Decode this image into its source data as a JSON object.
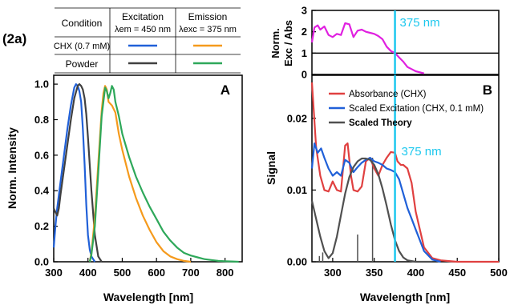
{
  "figure_label": "(2a)",
  "legend_table": {
    "header": [
      "Condition",
      "Excitation",
      "Emission"
    ],
    "excitation_sub": "λem = 450 nm",
    "emission_sub": "λexc = 375 nm",
    "rows": [
      {
        "condition": "CHX (0.7 mM)",
        "exc_color": "#2060d8",
        "emi_color": "#f59a1c"
      },
      {
        "condition": "Powder",
        "exc_color": "#404040",
        "emi_color": "#2ea85a"
      }
    ]
  },
  "chart_data": [
    {
      "type": "line",
      "panel": "A",
      "xlabel": "Wavelength [nm]",
      "ylabel": "Norm. Intensity",
      "xlim": [
        300,
        850
      ],
      "ylim": [
        0,
        1.05
      ],
      "xticks": [
        300,
        400,
        500,
        600,
        700,
        800
      ],
      "yticks": [
        "0.0",
        "0.2",
        "0.4",
        "0.6",
        "0.8",
        "1.0"
      ],
      "series": [
        {
          "color": "#2060d8",
          "x": [
            300,
            305,
            310,
            320,
            330,
            340,
            350,
            360,
            365,
            370,
            375,
            380,
            385,
            390,
            395,
            400,
            405,
            410,
            420
          ],
          "y": [
            0.08,
            0.2,
            0.3,
            0.45,
            0.6,
            0.75,
            0.88,
            0.98,
            1.0,
            0.99,
            0.96,
            0.9,
            0.75,
            0.55,
            0.32,
            0.15,
            0.07,
            0.03,
            0.0
          ]
        },
        {
          "color": "#404040",
          "x": [
            300,
            305,
            310,
            315,
            320,
            330,
            340,
            350,
            360,
            370,
            375,
            380,
            385,
            390,
            395,
            400,
            410,
            420,
            430,
            440
          ],
          "y": [
            0.3,
            0.28,
            0.26,
            0.3,
            0.38,
            0.52,
            0.66,
            0.8,
            0.92,
            0.99,
            1.0,
            0.99,
            0.97,
            0.92,
            0.83,
            0.7,
            0.4,
            0.15,
            0.03,
            0.0
          ]
        },
        {
          "color": "#f59a1c",
          "x": [
            405,
            410,
            420,
            430,
            440,
            445,
            450,
            455,
            460,
            470,
            480,
            490,
            500,
            520,
            540,
            560,
            580,
            600,
            620,
            640,
            660,
            680,
            700
          ],
          "y": [
            0.0,
            0.05,
            0.25,
            0.55,
            0.85,
            0.95,
            0.99,
            0.97,
            0.9,
            0.88,
            0.84,
            0.72,
            0.63,
            0.48,
            0.36,
            0.26,
            0.18,
            0.11,
            0.06,
            0.03,
            0.015,
            0.005,
            0.0
          ]
        },
        {
          "color": "#2ea85a",
          "x": [
            405,
            410,
            420,
            430,
            440,
            450,
            455,
            460,
            465,
            470,
            475,
            480,
            490,
            500,
            520,
            540,
            560,
            580,
            600,
            620,
            640,
            660,
            680,
            700,
            720,
            740,
            760,
            780,
            800,
            820,
            840
          ],
          "y": [
            0.0,
            0.04,
            0.2,
            0.5,
            0.82,
            0.98,
            0.96,
            0.92,
            0.95,
            0.99,
            0.97,
            0.9,
            0.82,
            0.72,
            0.59,
            0.48,
            0.39,
            0.31,
            0.24,
            0.17,
            0.12,
            0.08,
            0.05,
            0.035,
            0.025,
            0.015,
            0.01,
            0.005,
            0.003,
            0.002,
            0.0
          ]
        }
      ]
    },
    {
      "type": "line",
      "panel": "top-right",
      "ylabel_line1": "Norm.",
      "ylabel_line2": "Exc / Abs",
      "xlim": [
        275,
        500
      ],
      "ylim": [
        0,
        3
      ],
      "yticks": [
        "0",
        "1",
        "2",
        "3"
      ],
      "marker_label": "375 nm",
      "marker_x": 375,
      "reference_y": 1,
      "series": [
        {
          "color": "#e020e0",
          "x": [
            275,
            278,
            282,
            285,
            290,
            295,
            300,
            305,
            310,
            315,
            320,
            325,
            330,
            335,
            340,
            345,
            350,
            355,
            360,
            365,
            370,
            375,
            380,
            385,
            390,
            395,
            400,
            405,
            410
          ],
          "y": [
            1.5,
            2.2,
            2.3,
            2.1,
            2.25,
            1.85,
            1.75,
            1.9,
            1.85,
            2.4,
            2.35,
            1.75,
            2.05,
            2.1,
            2.0,
            1.95,
            1.9,
            1.8,
            1.65,
            1.3,
            1.1,
            1.0,
            0.8,
            0.6,
            0.35,
            0.25,
            0.15,
            0.1,
            0.05
          ]
        }
      ]
    },
    {
      "type": "line",
      "panel": "B",
      "xlabel": "Wavelength [nm]",
      "ylabel": "Signal",
      "xlim": [
        275,
        500
      ],
      "ylim": [
        0,
        0.026
      ],
      "xticks": [
        300,
        350,
        400,
        450,
        500
      ],
      "yticks": [
        "0.00",
        "0.01",
        "0.02"
      ],
      "marker_label": "375 nm",
      "marker_x": 375,
      "legend": [
        "Absorbance (CHX)",
        "Scaled Excitation (CHX, 0.1 mM)",
        "Scaled Theory"
      ],
      "series": [
        {
          "name": "Absorbance (CHX)",
          "color": "#e04040",
          "x": [
            275,
            280,
            285,
            290,
            295,
            300,
            305,
            310,
            315,
            318,
            322,
            325,
            330,
            335,
            340,
            345,
            350,
            355,
            360,
            365,
            370,
            375,
            378,
            382,
            385,
            390,
            395,
            400,
            410,
            420,
            430,
            440,
            450,
            470,
            500
          ],
          "y": [
            0.025,
            0.016,
            0.012,
            0.01,
            0.0098,
            0.0112,
            0.01,
            0.0098,
            0.0162,
            0.0165,
            0.012,
            0.01,
            0.0098,
            0.0105,
            0.014,
            0.0145,
            0.013,
            0.012,
            0.0135,
            0.0145,
            0.0153,
            0.0152,
            0.014,
            0.0135,
            0.0135,
            0.013,
            0.011,
            0.007,
            0.002,
            0.0005,
            0.0002,
            0.0001,
            0.0,
            0.0,
            0.0
          ]
        },
        {
          "name": "Scaled Excitation (CHX, 0.1 mM)",
          "color": "#2060d8",
          "x": [
            275,
            278,
            282,
            286,
            290,
            295,
            300,
            305,
            310,
            315,
            320,
            325,
            330,
            335,
            340,
            345,
            350,
            355,
            360,
            365,
            370,
            375,
            380,
            385,
            390,
            395,
            400,
            405,
            410,
            420,
            430
          ],
          "y": [
            0.013,
            0.0165,
            0.0152,
            0.0158,
            0.0145,
            0.013,
            0.012,
            0.0125,
            0.012,
            0.0142,
            0.0138,
            0.0125,
            0.0132,
            0.0138,
            0.0142,
            0.0145,
            0.014,
            0.0138,
            0.0135,
            0.013,
            0.0128,
            0.0125,
            0.0115,
            0.0095,
            0.0075,
            0.006,
            0.0045,
            0.003,
            0.0015,
            0.0003,
            0.0
          ]
        },
        {
          "name": "Scaled Theory",
          "color": "#505050",
          "x": [
            275,
            280,
            285,
            290,
            295,
            300,
            305,
            310,
            315,
            320,
            325,
            330,
            335,
            340,
            345,
            350,
            355,
            360,
            365,
            370,
            375,
            380,
            385,
            390,
            400,
            420
          ],
          "y": [
            0.0085,
            0.006,
            0.0035,
            0.0015,
            0.0005,
            0.0012,
            0.0035,
            0.0065,
            0.0095,
            0.0118,
            0.0132,
            0.014,
            0.0144,
            0.0144,
            0.0142,
            0.0135,
            0.0122,
            0.0102,
            0.0078,
            0.0052,
            0.003,
            0.0015,
            0.0006,
            0.0002,
            0.0,
            0.0
          ]
        }
      ],
      "sticks": [
        {
          "x": 284,
          "y": 0.0008
        },
        {
          "x": 288,
          "y": 0.0013
        },
        {
          "x": 330,
          "y": 0.0038
        },
        {
          "x": 348,
          "y": 0.0145
        }
      ]
    }
  ]
}
